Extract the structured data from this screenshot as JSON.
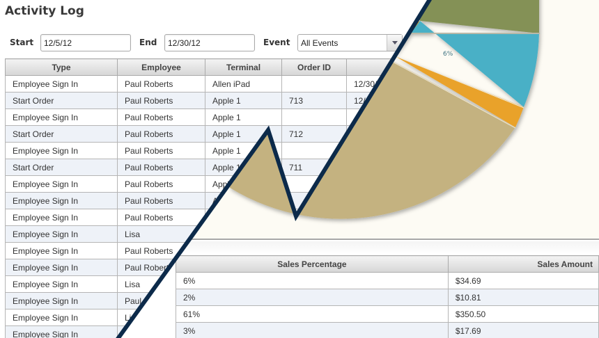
{
  "page": {
    "title": "Activity Log"
  },
  "filters": {
    "start_label": "Start",
    "start_value": "12/5/12",
    "end_label": "End",
    "end_value": "12/30/12",
    "event_label": "Event",
    "event_value": "All Events"
  },
  "activity_table": {
    "columns": [
      "Type",
      "Employee",
      "Terminal",
      "Order ID",
      ""
    ],
    "rows": [
      [
        "Employee Sign In",
        "Paul Roberts",
        "Allen iPad",
        "",
        "12/30/"
      ],
      [
        "Start Order",
        "Paul Roberts",
        "Apple 1",
        "713",
        "12/"
      ],
      [
        "Employee Sign In",
        "Paul Roberts",
        "Apple 1",
        "",
        ""
      ],
      [
        "Start Order",
        "Paul Roberts",
        "Apple 1",
        "712",
        ""
      ],
      [
        "Employee Sign In",
        "Paul Roberts",
        "Apple 1",
        "",
        ""
      ],
      [
        "Start Order",
        "Paul Roberts",
        "Apple 1",
        "711",
        ""
      ],
      [
        "Employee Sign In",
        "Paul Roberts",
        "Apple 1",
        "",
        ""
      ],
      [
        "Employee Sign In",
        "Paul Roberts",
        "Apple 1",
        "",
        ""
      ],
      [
        "Employee Sign In",
        "Paul Roberts",
        "",
        "",
        ""
      ],
      [
        "Employee Sign In",
        "Lisa",
        "",
        "",
        ""
      ],
      [
        "Employee Sign In",
        "Paul Roberts",
        "",
        "",
        ""
      ],
      [
        "Employee Sign In",
        "Paul Roberts",
        "",
        "",
        ""
      ],
      [
        "Employee Sign In",
        "Lisa",
        "",
        "",
        ""
      ],
      [
        "Employee Sign In",
        "Paul",
        "",
        "",
        ""
      ],
      [
        "Employee Sign In",
        "Lisa",
        "",
        "",
        ""
      ],
      [
        "Employee Sign In",
        "",
        "",
        "",
        ""
      ]
    ]
  },
  "sales_table": {
    "columns": [
      "Sales Percentage",
      "Sales Amount"
    ],
    "rows": [
      [
        "6%",
        "$34.69"
      ],
      [
        "2%",
        "$10.81"
      ],
      [
        "61%",
        "$350.50"
      ],
      [
        "3%",
        "$17.69"
      ]
    ]
  },
  "chart_data": {
    "type": "pie",
    "title": "",
    "slices": [
      {
        "label": "6%",
        "value": 6,
        "color": "#48b0c6"
      },
      {
        "label": "2%",
        "value": 2,
        "color": "#e9a22b"
      },
      {
        "label": "61%",
        "value": 61,
        "color": "#c4b280"
      },
      {
        "label": "",
        "value": null,
        "color": "#849157"
      }
    ],
    "visible_labels": [
      "6%"
    ],
    "amounts": [
      "$34.69",
      "$10.81",
      "$350.50",
      "$17.69"
    ]
  },
  "colors": {
    "divider": "#0c2a4a",
    "panel_bg": "#fdfbf4",
    "row_alt": "#eef2f8"
  }
}
